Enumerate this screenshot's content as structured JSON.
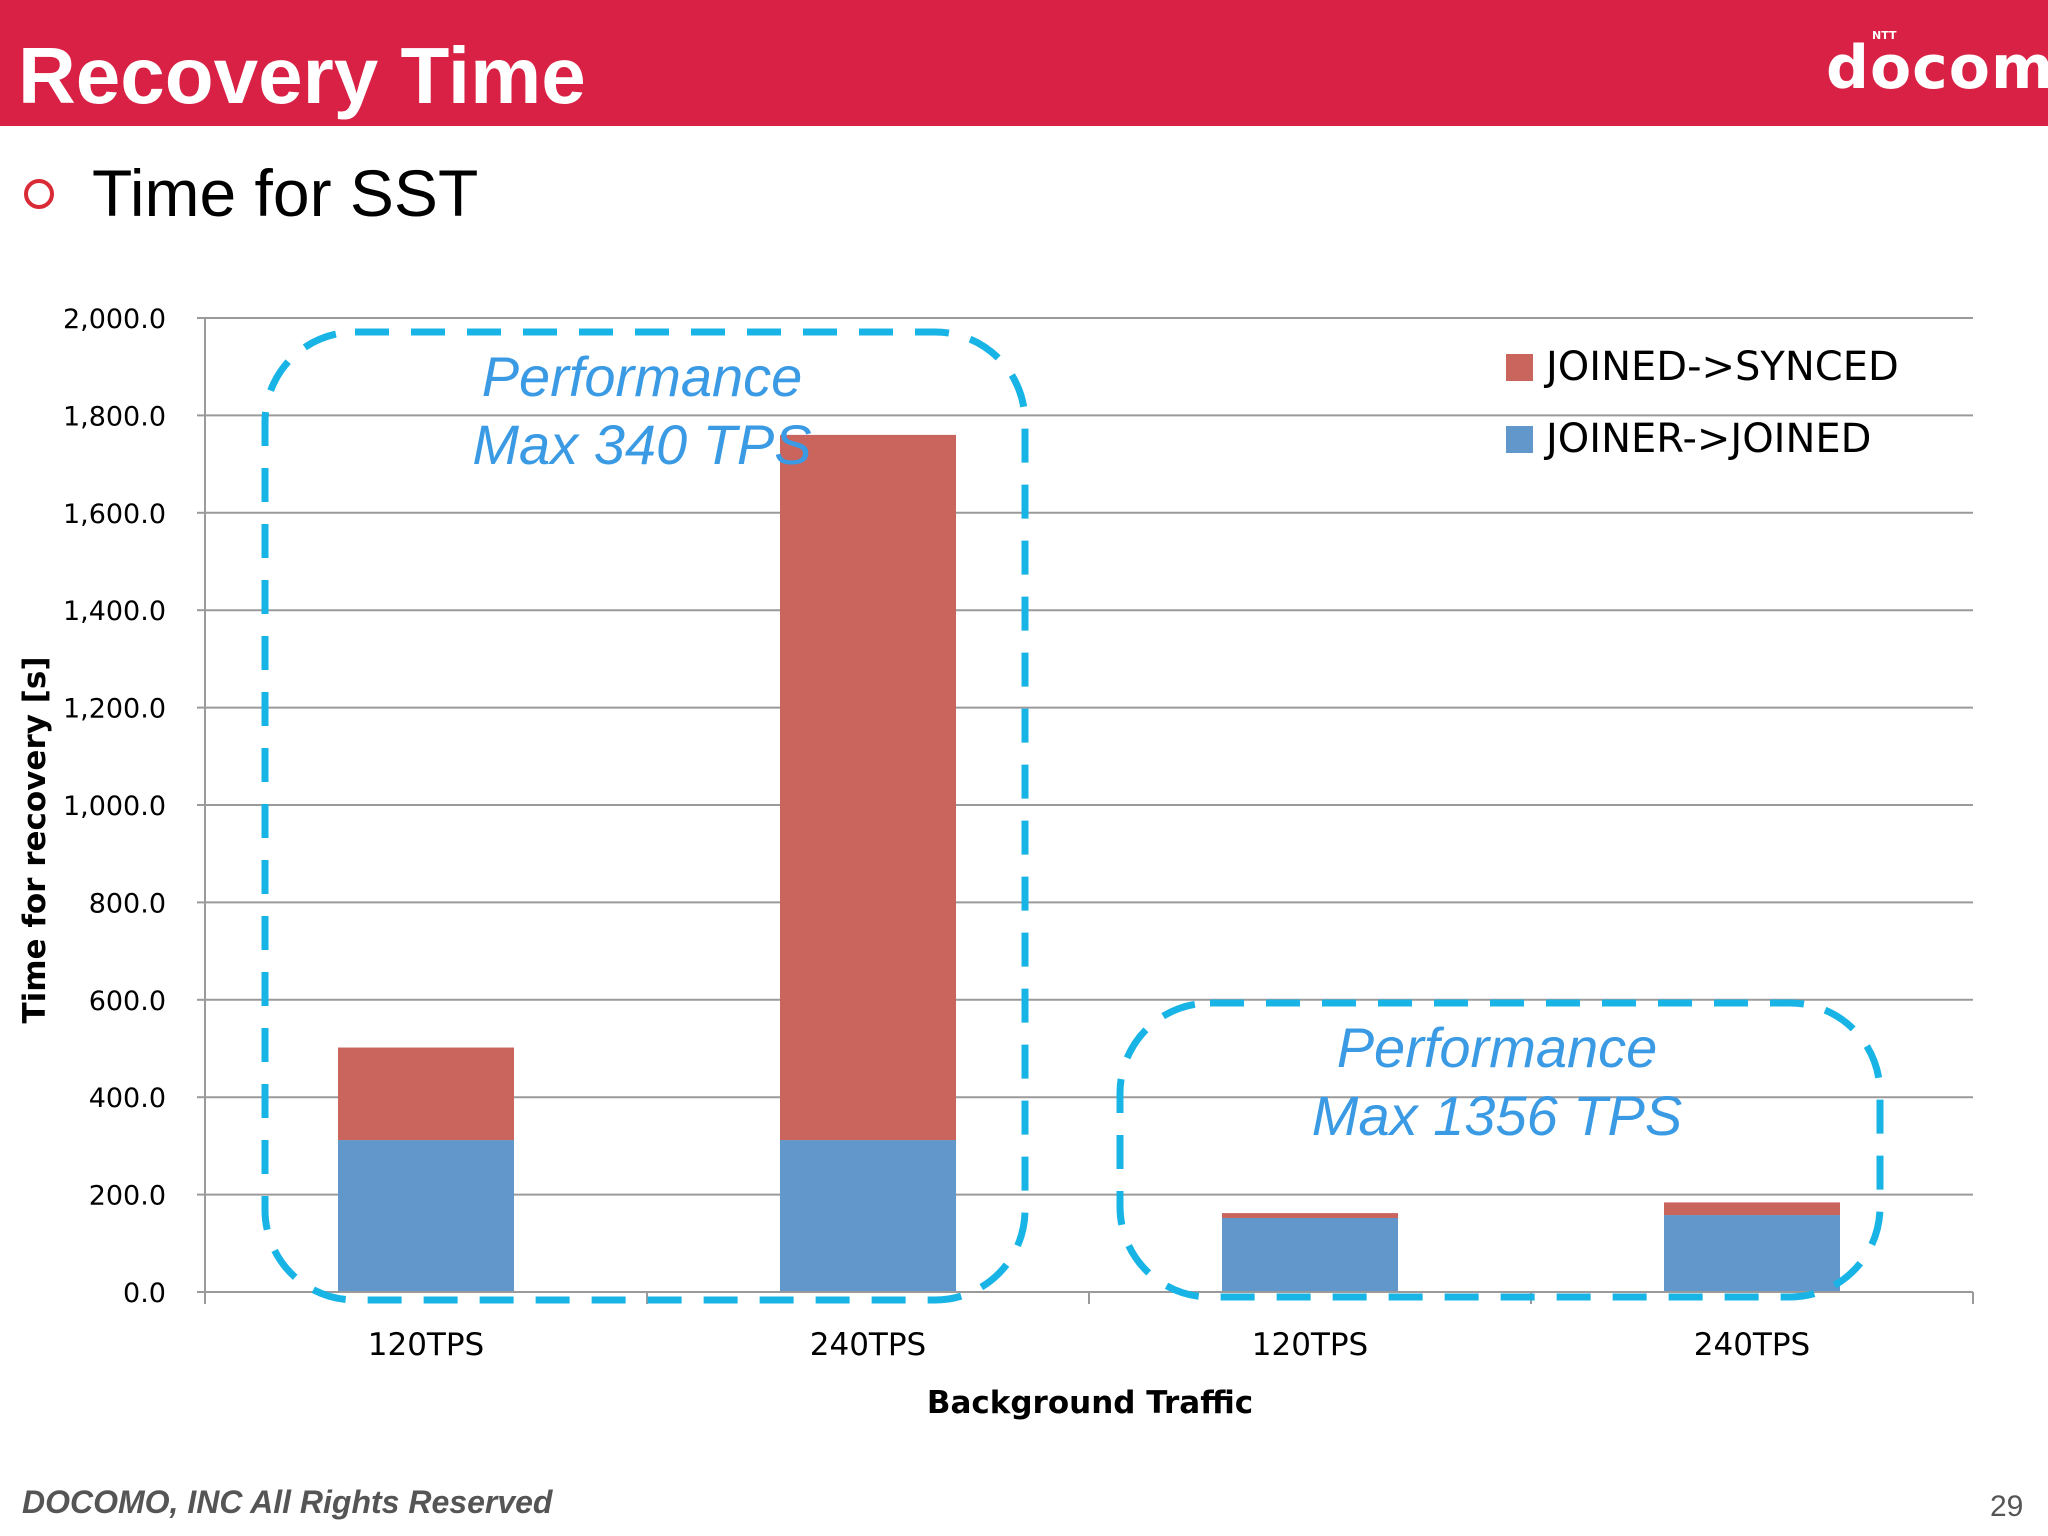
{
  "header": {
    "title": "Recovery Time",
    "logo_text": "docomo",
    "logo_superscript": "NTT",
    "bar_color": "#d82144"
  },
  "bullet": {
    "text": "Time for SST",
    "marker_color": "#d82b36"
  },
  "chart_data": {
    "type": "bar",
    "stacked": true,
    "categories": [
      "120TPS",
      "240TPS",
      "120TPS",
      "240TPS"
    ],
    "series": [
      {
        "name": "JOINER->JOINED",
        "color": "#6297cb",
        "values": [
          312,
          312,
          152,
          158
        ]
      },
      {
        "name": "JOINED->SYNCED",
        "color": "#c9655d",
        "values": [
          190,
          1448,
          10,
          26
        ]
      }
    ],
    "xlabel": "Background Traffic",
    "ylabel": "Time for recovery [s]",
    "ylim": [
      0,
      2000
    ],
    "yticks": [
      "0.0",
      "200.0",
      "400.0",
      "600.0",
      "800.0",
      "1,000.0",
      "1,200.0",
      "1,400.0",
      "1,600.0",
      "1,800.0",
      "2,000.0"
    ],
    "grid": true,
    "legend_position": "top-right",
    "annotations": [
      {
        "line1": "Performance",
        "line2": "Max 340 TPS",
        "groups": [
          0,
          1
        ]
      },
      {
        "line1": "Performance",
        "line2": "Max 1356 TPS",
        "groups": [
          2,
          3
        ]
      }
    ],
    "annotation_color": "#3a9ae3",
    "annotation_box_color": "#19b4e6"
  },
  "footer": {
    "copyright": "DOCOMO, INC All Rights Reserved",
    "page_number": "29"
  }
}
